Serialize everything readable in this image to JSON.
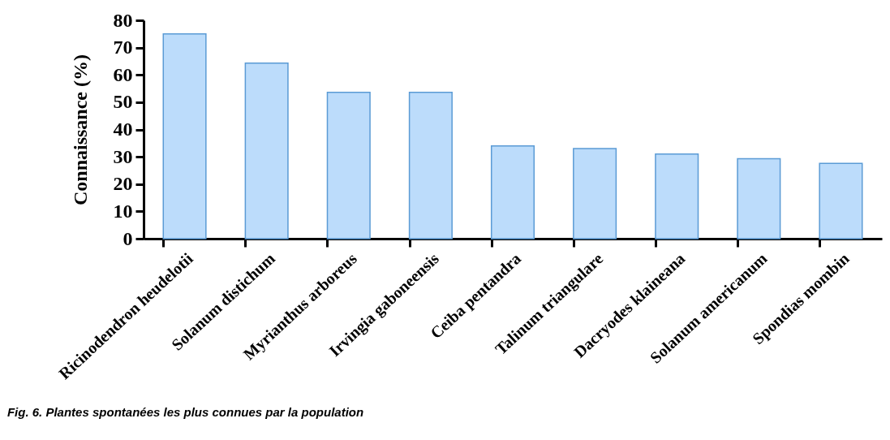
{
  "chart_data": {
    "type": "bar",
    "ylabel": "Connaissance  (%)",
    "categories": [
      "Ricinodendron heudelotii",
      "Solanum distichum",
      "Myrianthus arboreus",
      "Irvingia gaboneensis",
      "Ceiba pentandra",
      "Talinum triangulare",
      "Dacryodes klaineana",
      "Solanum americanum",
      "Spondias mombin"
    ],
    "values": [
      75,
      64.3,
      53.6,
      53.6,
      34,
      33,
      31,
      29.3,
      27.6
    ],
    "color": "#bcdcfb",
    "ylim": [
      0,
      80
    ],
    "yticks": [
      0,
      10,
      20,
      30,
      40,
      50,
      60,
      70,
      80
    ],
    "grid": false,
    "annotations": [
      "Fig. 6. Plantes spontanées  les plus connues  par la  population"
    ]
  }
}
